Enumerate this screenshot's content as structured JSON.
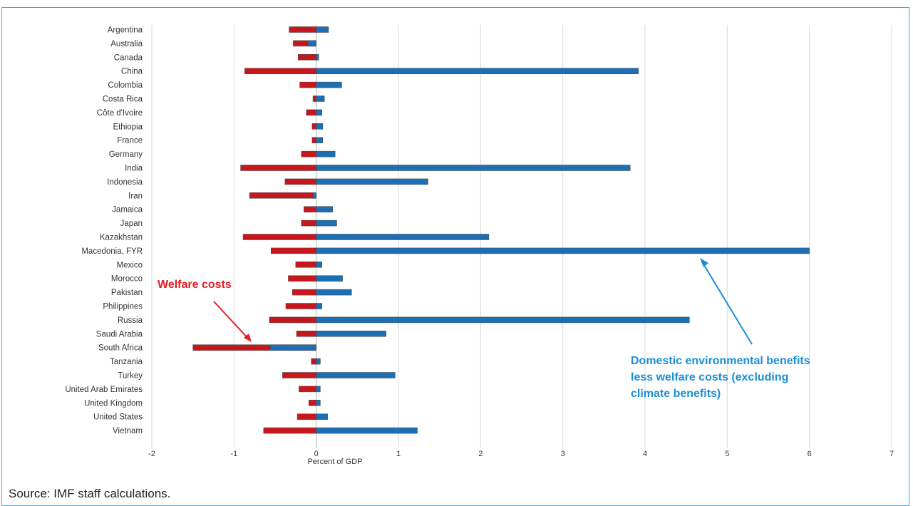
{
  "chart_data": {
    "type": "bar",
    "orientation": "horizontal",
    "stacked": "overlay",
    "categories": [
      "Argentina",
      "Australia",
      "Canada",
      "China",
      "Colombia",
      "Costa Rica",
      "Côte d'Ivoire",
      "Ethiopia",
      "France",
      "Germany",
      "India",
      "Indonesia",
      "Iran",
      "Jamaica",
      "Japan",
      "Kazakhstan",
      "Macedonia, FYR",
      "Mexico",
      "Morocco",
      "Pakistan",
      "Philippines",
      "Russia",
      "Saudi Arabia",
      "South Africa",
      "Tanzania",
      "Turkey",
      "United Arab Emirates",
      "United Kingdom",
      "United States",
      "Vietnam"
    ],
    "series": [
      {
        "name": "Welfare costs",
        "color": "#c8161d",
        "values": [
          -0.33,
          -0.28,
          -0.22,
          -0.87,
          -0.2,
          -0.04,
          -0.12,
          -0.05,
          -0.05,
          -0.18,
          -0.92,
          -0.38,
          -0.81,
          -0.15,
          -0.18,
          -0.89,
          -0.55,
          -0.25,
          -0.34,
          -0.29,
          -0.37,
          -0.57,
          -0.24,
          -1.5,
          -0.06,
          -0.41,
          -0.21,
          -0.09,
          -0.23,
          -0.64
        ]
      },
      {
        "name": "Domestic environmental benefits less welfare costs (excluding climate benefits)",
        "color": "#1c6fb5",
        "values": [
          0.15,
          -0.1,
          0.03,
          3.92,
          0.31,
          0.1,
          0.07,
          0.08,
          0.08,
          0.23,
          3.82,
          1.36,
          -0.04,
          0.2,
          0.25,
          2.1,
          6.0,
          0.07,
          0.32,
          0.43,
          0.07,
          4.54,
          0.85,
          -0.56,
          0.05,
          0.96,
          0.05,
          0.05,
          0.14,
          1.23
        ]
      }
    ],
    "xlabel": "Percent of GDP",
    "ylabel": "",
    "xlim": [
      -2,
      7
    ],
    "xticks": [
      "-2",
      "-1",
      "0",
      "1",
      "2",
      "3",
      "4",
      "5",
      "6",
      "7"
    ],
    "grid": "vertical",
    "annotations": [
      "Welfare costs",
      "Domestic environmental benefits",
      "less welfare costs (excluding",
      "climate benefits)"
    ],
    "source": "Source: IMF staff calculations."
  }
}
